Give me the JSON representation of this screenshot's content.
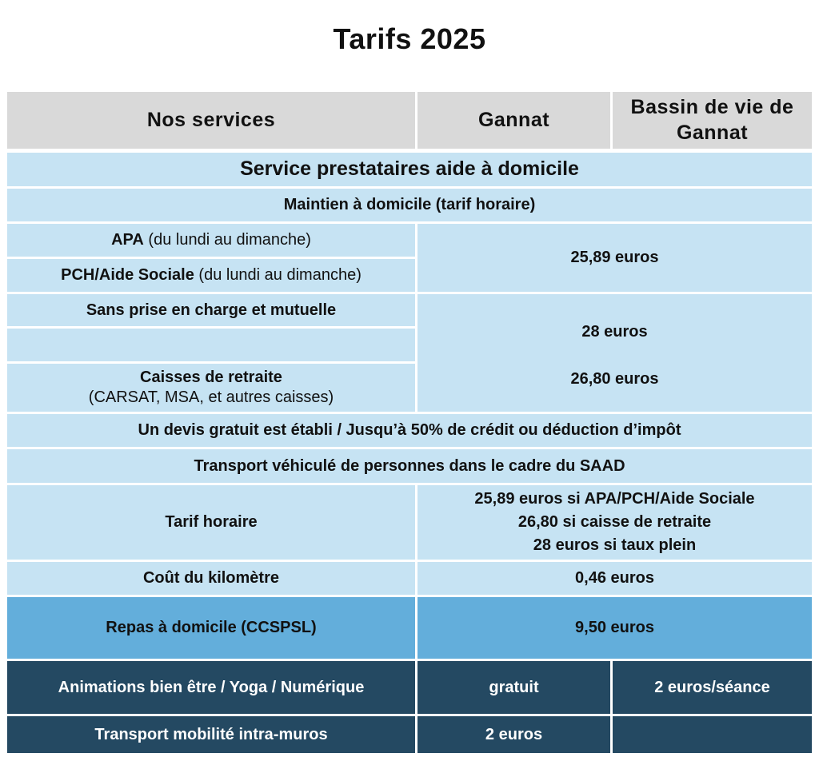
{
  "title": "Tarifs 2025",
  "header": {
    "col_services": "Nos services",
    "col_gannat": "Gannat",
    "col_bassin": "Bassin de vie de Gannat"
  },
  "section": {
    "title": "Service prestataires aide à domicile",
    "maintien": "Maintien à domicile (tarif horaire)"
  },
  "rows": {
    "apa_label": "APA",
    "apa_note": "(du lundi au dimanche)",
    "pch_label": "PCH/Aide Sociale",
    "pch_note": "(du lundi au dimanche)",
    "apa_pch_price": "25,89 euros",
    "sans_prise_label": "Sans prise en charge et mutuelle",
    "sans_prise_price": "28 euros",
    "caisses_label": "Caisses de retraite",
    "caisses_note": "(CARSAT, MSA, et autres caisses)",
    "caisses_price": "26,80 euros",
    "devis": "Un devis gratuit est établi / Jusqu’à 50% de crédit ou déduction d’impôt",
    "transport_vehicule": "Transport véhiculé de personnes dans le cadre du SAAD",
    "tarif_horaire_label": "Tarif horaire",
    "tarif_horaire_line1": "25,89 euros si APA/PCH/Aide Sociale",
    "tarif_horaire_line2": "26,80 si caisse de retraite",
    "tarif_horaire_line3": "28 euros si taux plein",
    "km_label": "Coût du kilomètre",
    "km_price": "0,46 euros",
    "repas_label": "Repas à domicile (CCSPSL)",
    "repas_price": "9,50 euros",
    "animations_label": "Animations bien être / Yoga / Numérique",
    "animations_gannat": "gratuit",
    "animations_bassin": "2 euros/séance",
    "mobilite_label": "Transport mobilité intra-muros",
    "mobilite_gannat": "2 euros",
    "mobilite_bassin": ""
  },
  "colors": {
    "header_grey": "#d9d9d9",
    "light_blue": "#c6e3f3",
    "medium_blue": "#63aedb",
    "dark_navy": "#244962"
  }
}
